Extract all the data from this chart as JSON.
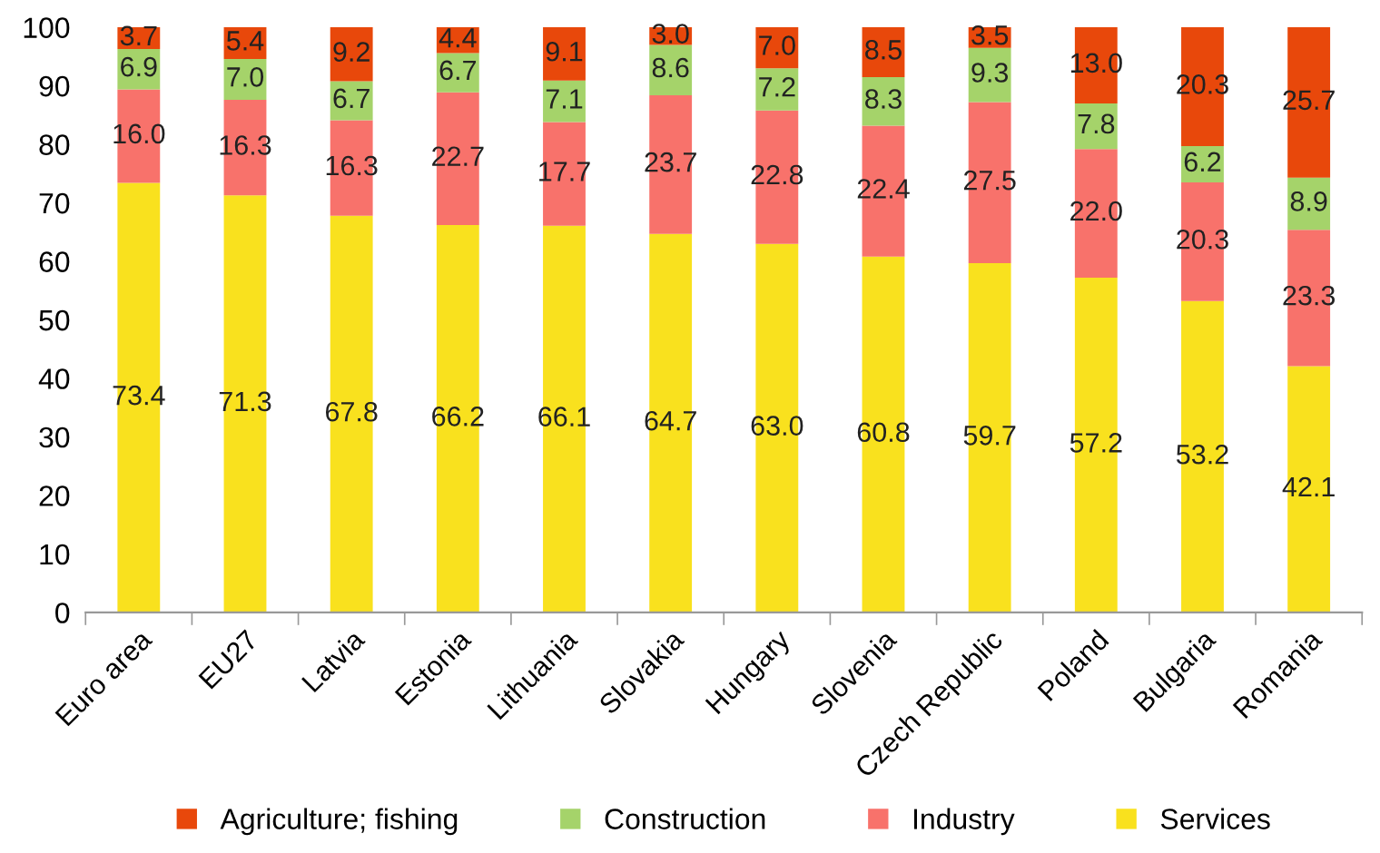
{
  "chart_data": {
    "type": "bar",
    "stacked": true,
    "categories": [
      "Euro area",
      "EU27",
      "Latvia",
      "Estonia",
      "Lithuania",
      "Slovakia",
      "Hungary",
      "Slovenia",
      "Czech Republic",
      "Poland",
      "Bulgaria",
      "Romania"
    ],
    "series": [
      {
        "name": "Services",
        "color": "#f9e11e",
        "values": [
          73.4,
          71.3,
          67.8,
          66.2,
          66.1,
          64.7,
          63.0,
          60.8,
          59.7,
          57.2,
          53.2,
          42.1
        ],
        "value_labels": [
          "73.4",
          "71.3",
          "67.8",
          "66.2",
          "66.1",
          "64.7",
          "63.0",
          "60.8",
          "59.7",
          "57.2",
          "53.2",
          "42.1"
        ]
      },
      {
        "name": "Industry",
        "color": "#f8726b",
        "values": [
          16.0,
          16.3,
          16.3,
          22.7,
          17.7,
          23.7,
          22.8,
          22.4,
          27.5,
          22.0,
          20.3,
          23.3
        ],
        "value_labels": [
          "16.0",
          "16.3",
          "16.3",
          "22.7",
          "17.7",
          "23.7",
          "22.8",
          "22.4",
          "27.5",
          "22.0",
          "20.3",
          "23.3"
        ]
      },
      {
        "name": "Construction",
        "color": "#a5d36a",
        "values": [
          6.9,
          7.0,
          6.7,
          6.7,
          7.1,
          8.6,
          7.2,
          8.3,
          9.3,
          7.8,
          6.2,
          8.9
        ],
        "value_labels": [
          "6.9",
          "7.0",
          "6.7",
          "6.7",
          "7.1",
          "8.6",
          "7.2",
          "8.3",
          "9.3",
          "7.8",
          "6.2",
          "8.9"
        ]
      },
      {
        "name": "Agriculture; fishing",
        "color": "#e8480b",
        "values": [
          3.7,
          5.4,
          9.2,
          4.4,
          9.1,
          3.0,
          7.0,
          8.5,
          3.5,
          13.0,
          20.3,
          25.7
        ],
        "value_labels": [
          "3.7",
          "5.4",
          "9.2",
          "4.4",
          "9.1",
          "3.0",
          "7.0",
          "8.5",
          "3.5",
          "13.0",
          "20.3",
          "25.7"
        ]
      }
    ],
    "ylim": [
      0,
      100
    ],
    "yticks": [
      0,
      10,
      20,
      30,
      40,
      50,
      60,
      70,
      80,
      90,
      100
    ],
    "grid": false,
    "legend": "bottom"
  }
}
